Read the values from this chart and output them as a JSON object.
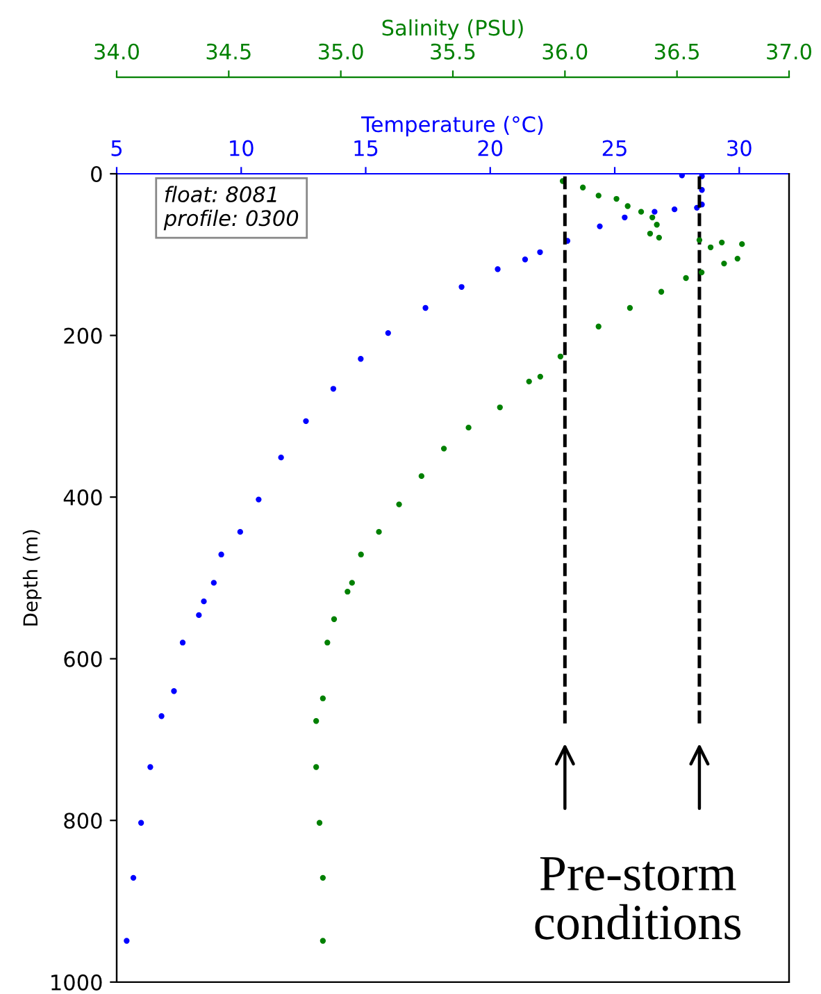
{
  "chart_data": {
    "type": "scatter",
    "xlabel": "Temperature (°C)",
    "x2label": "Salinity (PSU)",
    "ylabel": "Depth (m)",
    "xlim": [
      5,
      32
    ],
    "xticks": [
      5,
      10,
      15,
      20,
      25,
      30
    ],
    "x2lim": [
      34.0,
      37.0
    ],
    "x2ticks": [
      {
        "value": 34.0,
        "label": "34.0"
      },
      {
        "value": 34.5,
        "label": "34.5"
      },
      {
        "value": 35.0,
        "label": "35.0"
      },
      {
        "value": 35.5,
        "label": "35.5"
      },
      {
        "value": 36.0,
        "label": "36.0"
      },
      {
        "value": 36.5,
        "label": "36.5"
      },
      {
        "value": 37.0,
        "label": "37.0"
      }
    ],
    "ylim": [
      1000,
      0
    ],
    "yticks": [
      0,
      200,
      400,
      600,
      800,
      1000
    ],
    "grid": false,
    "marker": "circle",
    "series": [
      {
        "color": "#0000ff",
        "x": [
          27.7,
          28.5,
          28.5,
          28.5,
          28.3,
          27.4,
          26.6,
          25.4,
          24.4,
          23.1,
          22.0,
          21.4,
          20.3,
          18.85,
          17.4,
          15.9,
          14.8,
          13.7,
          12.6,
          11.6,
          10.7,
          9.96,
          9.2,
          8.9,
          8.5,
          8.3,
          7.65,
          7.3,
          6.8,
          6.35,
          5.98,
          5.67,
          5.4
        ],
        "values": [
          2,
          3,
          20,
          38,
          42,
          44,
          47,
          54,
          65,
          83,
          97,
          106,
          118,
          140,
          166,
          197,
          229,
          266,
          306,
          351,
          403,
          443,
          471,
          506,
          529,
          546,
          580,
          640,
          671,
          734,
          803,
          871,
          949
        ]
      },
      {
        "color": "#008000",
        "axis": "x2",
        "x": [
          35.99,
          36.08,
          36.15,
          36.23,
          36.28,
          36.34,
          36.39,
          36.41,
          36.38,
          36.42,
          36.6,
          36.7,
          36.79,
          36.65,
          36.77,
          36.71,
          36.61,
          36.54,
          36.43,
          36.29,
          36.15,
          35.98,
          35.89,
          35.84,
          35.71,
          35.57,
          35.46,
          35.36,
          35.26,
          35.17,
          35.09,
          35.05,
          35.03,
          34.97,
          34.94,
          34.92,
          34.89,
          34.89,
          34.905,
          34.92,
          34.92
        ],
        "values": [
          9,
          17,
          27,
          31,
          40,
          47,
          54,
          63,
          74,
          79,
          82,
          85,
          87,
          91,
          105,
          111,
          122,
          129,
          146,
          166,
          189,
          226,
          251,
          257,
          289,
          314,
          340,
          374,
          409,
          443,
          471,
          506,
          517,
          551,
          580,
          649,
          677,
          734,
          803,
          871,
          949
        ]
      }
    ],
    "ref_lines": [
      {
        "axis": "x2",
        "value": 36.0,
        "color": "#000000",
        "line_style": "dashed"
      },
      {
        "axis": "x",
        "value": 28.4,
        "color": "#000000",
        "line_style": "dashed"
      }
    ],
    "annotations": [
      "float: 8081\nprofile: 0300",
      "Pre-storm\nconditions"
    ]
  }
}
